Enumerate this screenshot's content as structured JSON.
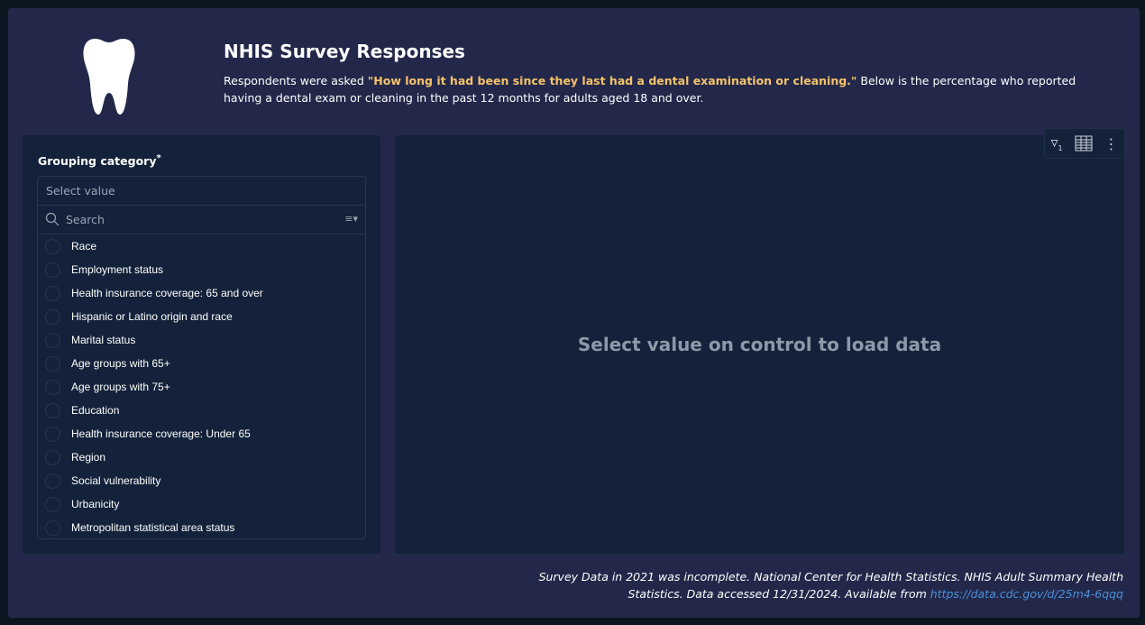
{
  "header": {
    "title": "NHIS Survey Responses",
    "desc_prefix": "Respondents were asked ",
    "question": "\"How long it had been since they last had a dental examination or cleaning.\"",
    "desc_suffix": " Below is the percentage who reported having a dental exam or cleaning in the past 12 months for adults aged 18 and over.",
    "icon": "tooth-icon"
  },
  "control": {
    "label": "Grouping category",
    "required": "*",
    "placeholder": "Select value",
    "search_placeholder": "Search",
    "options": [
      "Race",
      "Employment status",
      "Health insurance coverage: 65 and over",
      "Hispanic or Latino origin and race",
      "Marital status",
      "Age groups with 65+",
      "Age groups with 75+",
      "Education",
      "Health insurance coverage: Under 65",
      "Region",
      "Social vulnerability",
      "Urbanicity",
      "Metropolitan statistical area status"
    ]
  },
  "chart": {
    "empty_message": "Select value on control to load data",
    "filter_count": "1"
  },
  "footer": {
    "text1": "Survey Data in 2021 was incomplete. National Center for Health Statistics. NHIS Adult Summary Health Statistics. Data accessed 12/31/2024. Available from ",
    "link": "https://data.cdc.gov/d/25m4-6qqq"
  }
}
